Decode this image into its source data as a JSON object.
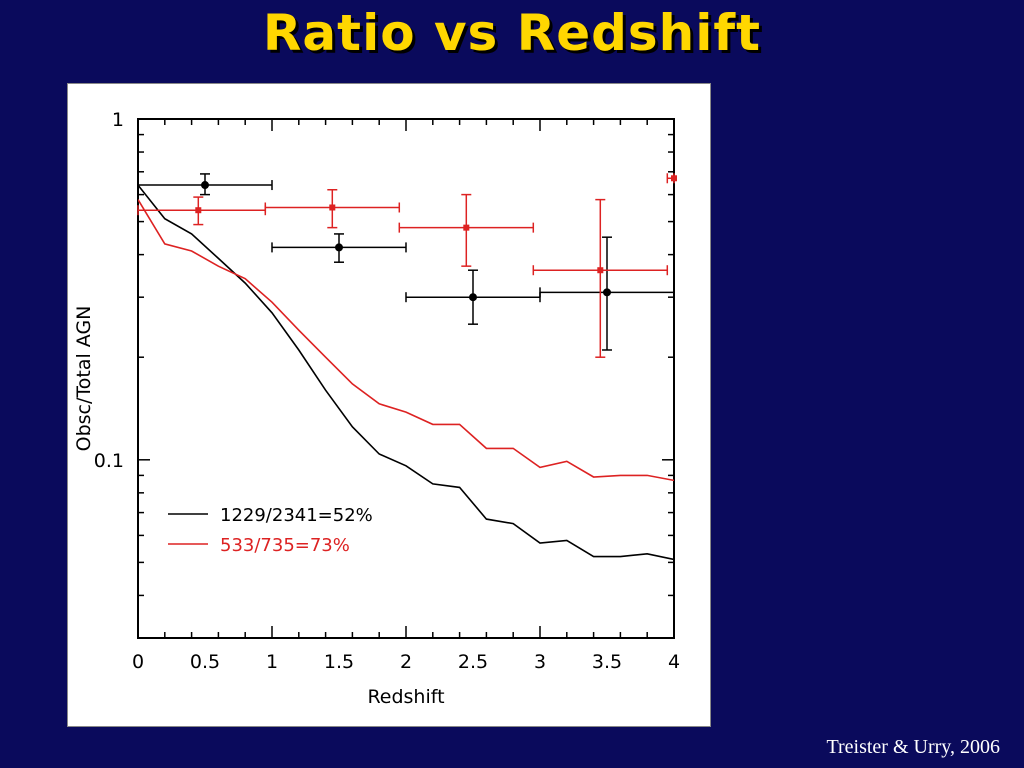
{
  "slide": {
    "title": "Ratio vs Redshift",
    "credit": "Treister & Urry, 2006"
  },
  "chart_data": {
    "type": "line",
    "xlabel": "Redshift",
    "ylabel": "Obsc/Total AGN",
    "xlim": [
      0,
      4
    ],
    "ylim": [
      0.03,
      1
    ],
    "yscale": "log",
    "x_ticks": [
      "0",
      "0.5",
      "1",
      "1.5",
      "2",
      "2.5",
      "3",
      "3.5",
      "4"
    ],
    "y_ticks": [
      "0.1",
      "1"
    ],
    "legend_position": "bottom-left",
    "series": [
      {
        "name": "1229/2341=52%",
        "color": "#000000",
        "x": [
          0,
          0.2,
          0.4,
          0.6,
          0.8,
          1.0,
          1.2,
          1.4,
          1.6,
          1.8,
          2.0,
          2.2,
          2.4,
          2.6,
          2.8,
          3.0,
          3.2,
          3.4,
          3.6,
          3.8,
          4.0
        ],
        "y": [
          0.64,
          0.51,
          0.46,
          0.39,
          0.33,
          0.27,
          0.21,
          0.16,
          0.125,
          0.104,
          0.096,
          0.085,
          0.083,
          0.067,
          0.065,
          0.057,
          0.058,
          0.052,
          0.052,
          0.053,
          0.051
        ]
      },
      {
        "name": "533/735=73%",
        "color": "#dd2222",
        "x": [
          0,
          0.2,
          0.4,
          0.6,
          0.8,
          1.0,
          1.2,
          1.4,
          1.6,
          1.8,
          2.0,
          2.2,
          2.4,
          2.6,
          2.8,
          3.0,
          3.2,
          3.4,
          3.6,
          3.8,
          4.0
        ],
        "y": [
          0.58,
          0.43,
          0.41,
          0.37,
          0.34,
          0.29,
          0.24,
          0.2,
          0.167,
          0.146,
          0.138,
          0.127,
          0.127,
          0.108,
          0.108,
          0.095,
          0.099,
          0.089,
          0.09,
          0.09,
          0.087
        ]
      }
    ],
    "error_points": [
      {
        "color": "#000000",
        "x": 0.5,
        "y": 0.64,
        "xmin": 0,
        "xmax": 1,
        "ymin": 0.6,
        "ymax": 0.69
      },
      {
        "color": "#000000",
        "x": 1.5,
        "y": 0.42,
        "xmin": 1,
        "xmax": 2,
        "ymin": 0.38,
        "ymax": 0.46
      },
      {
        "color": "#000000",
        "x": 2.5,
        "y": 0.3,
        "xmin": 2,
        "xmax": 3,
        "ymin": 0.25,
        "ymax": 0.36
      },
      {
        "color": "#000000",
        "x": 3.5,
        "y": 0.31,
        "xmin": 3,
        "xmax": 4,
        "ymin": 0.21,
        "ymax": 0.45
      },
      {
        "color": "#dd2222",
        "x": 0.45,
        "y": 0.54,
        "xmin": 0,
        "xmax": 0.95,
        "ymin": 0.49,
        "ymax": 0.59
      },
      {
        "color": "#dd2222",
        "x": 1.45,
        "y": 0.55,
        "xmin": 0.95,
        "xmax": 1.95,
        "ymin": 0.48,
        "ymax": 0.62
      },
      {
        "color": "#dd2222",
        "x": 2.45,
        "y": 0.48,
        "xmin": 1.95,
        "xmax": 2.95,
        "ymin": 0.37,
        "ymax": 0.6
      },
      {
        "color": "#dd2222",
        "x": 3.45,
        "y": 0.36,
        "xmin": 2.95,
        "xmax": 3.95,
        "ymin": 0.2,
        "ymax": 0.58
      },
      {
        "color": "#dd2222",
        "x": 4.0,
        "y": 0.67,
        "xmin": 3.95,
        "xmax": 4.0,
        "ymin": 0.67,
        "ymax": 0.67
      }
    ]
  }
}
